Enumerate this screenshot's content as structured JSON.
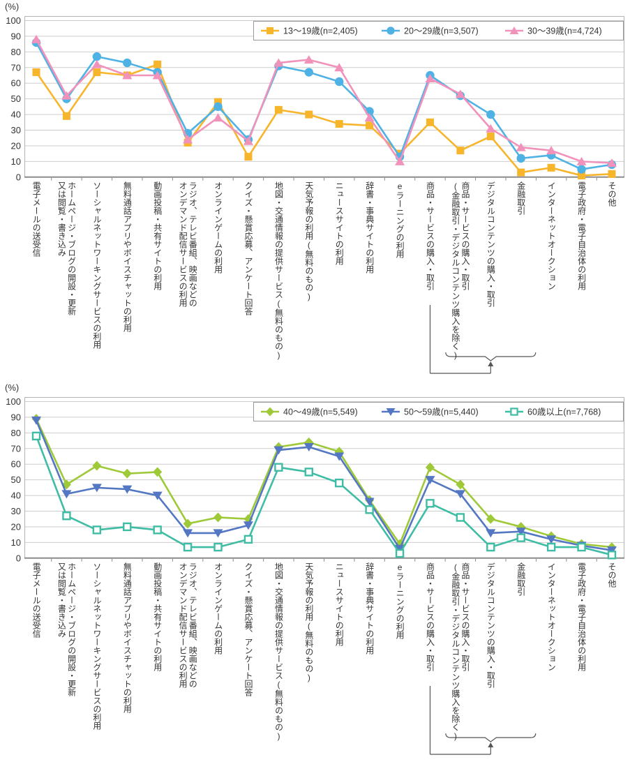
{
  "charts": [
    {
      "type": "line",
      "unit_label": "(%)",
      "ylim": [
        0,
        100
      ],
      "y_ticks": [
        0,
        10,
        20,
        30,
        40,
        50,
        60,
        70,
        80,
        90,
        100
      ],
      "legend_position": "top-right",
      "grid": true,
      "categories": [
        "電子メールの送受信",
        "ホームページ・ブログの開設・更新\n又は閲覧・書き込み",
        "ソーシャルネットワーキングサービスの利用",
        "無料通話アプリやボイスチャットの利用",
        "動画投稿・共有サイトの利用",
        "ラジオ、テレビ番組、映画などの\nオンデマンド配信サービスの利用",
        "オンラインゲームの利用",
        "クイズ・懸賞応募、アンケート回答",
        "地図・交通情報の提供サービス(無料のもの)",
        "天気予報の利用(無料のもの)",
        "ニュースサイトの利用",
        "辞書・事典サイトの利用",
        "eラーニングの利用",
        "商品・サービスの購入・取引",
        "商品・サービスの購入・取引\n(金融取引・デジタルコンテンツ購入を除く)",
        "デジタルコンテンツの購入・取引",
        "金融取引",
        "インターネットオークション",
        "電子政府・電子自治体の利用",
        "その他"
      ],
      "series": [
        {
          "name": "13〜19歳(n=2,405)",
          "marker": "square",
          "color": "#F7B52C",
          "values": [
            67,
            39,
            67,
            65,
            72,
            22,
            48,
            13,
            43,
            40,
            34,
            33,
            15,
            35,
            17,
            26,
            3,
            6,
            1,
            2
          ]
        },
        {
          "name": "20〜29歳(n=3,507)",
          "marker": "circle",
          "color": "#4FB2E5",
          "values": [
            86,
            50,
            77,
            73,
            67,
            28,
            45,
            24,
            71,
            67,
            61,
            42,
            13,
            65,
            52,
            40,
            12,
            14,
            5,
            8
          ]
        },
        {
          "name": "30〜39歳(n=4,724)",
          "marker": "triangle-up",
          "color": "#F192BB",
          "values": [
            88,
            52,
            72,
            65,
            65,
            24,
            38,
            23,
            73,
            75,
            70,
            38,
            10,
            63,
            53,
            31,
            19,
            17,
            10,
            9
          ]
        }
      ],
      "bracket": {
        "from_category_index": 13,
        "spans_category_indices": [
          14,
          15,
          16
        ]
      }
    },
    {
      "type": "line",
      "unit_label": "(%)",
      "ylim": [
        0,
        100
      ],
      "y_ticks": [
        0,
        10,
        20,
        30,
        40,
        50,
        60,
        70,
        80,
        90,
        100
      ],
      "legend_position": "top-right",
      "grid": true,
      "categories": [
        "電子メールの送受信",
        "ホームページ・ブログの開設・更新\n又は閲覧・書き込み",
        "ソーシャルネットワーキングサービスの利用",
        "無料通話アプリやボイスチャットの利用",
        "動画投稿・共有サイトの利用",
        "ラジオ、テレビ番組、映画などの\nオンデマンド配信サービスの利用",
        "オンラインゲームの利用",
        "クイズ・懸賞応募、アンケート回答",
        "地図・交通情報の提供サービス(無料のもの)",
        "天気予報の利用(無料のもの)",
        "ニュースサイトの利用",
        "辞書・事典サイトの利用",
        "eラーニングの利用",
        "商品・サービスの購入・取引",
        "商品・サービスの購入・取引\n(金融取引・デジタルコンテンツ購入を除く)",
        "デジタルコンテンツの購入・取引",
        "金融取引",
        "インターネットオークション",
        "電子政府・電子自治体の利用",
        "その他"
      ],
      "series": [
        {
          "name": "40〜49歳(n=5,549)",
          "marker": "diamond",
          "color": "#9EC938",
          "values": [
            89,
            47,
            59,
            54,
            55,
            22,
            26,
            25,
            71,
            74,
            68,
            37,
            9,
            58,
            47,
            25,
            20,
            14,
            9,
            7
          ]
        },
        {
          "name": "50〜59歳(n=5,440)",
          "marker": "triangle-down",
          "color": "#5377C2",
          "values": [
            88,
            41,
            45,
            44,
            40,
            16,
            16,
            21,
            69,
            71,
            65,
            36,
            6,
            50,
            41,
            16,
            17,
            12,
            8,
            5
          ]
        },
        {
          "name": "60歳以上(n=7,768)",
          "marker": "square-open",
          "color": "#3FBDA4",
          "values": [
            78,
            27,
            18,
            20,
            18,
            7,
            7,
            12,
            58,
            55,
            48,
            31,
            3,
            35,
            26,
            7,
            13,
            7,
            7,
            2
          ]
        }
      ],
      "bracket": {
        "from_category_index": 13,
        "spans_category_indices": [
          14,
          15,
          16
        ]
      }
    }
  ]
}
